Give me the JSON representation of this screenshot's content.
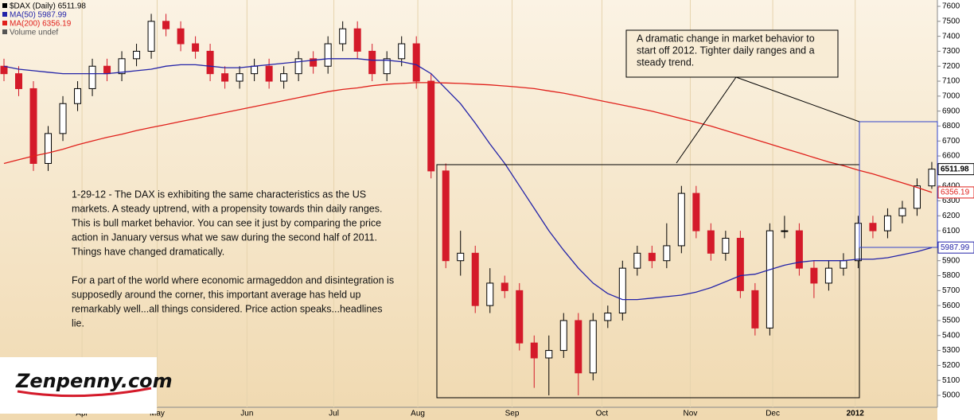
{
  "chart_data": {
    "type": "candlestick",
    "legend": [
      "$DAX (Daily) 6511.98",
      "MA(50) 5987.99",
      "MA(200) 6356.19",
      "Volume undef"
    ],
    "open": [
      7200,
      7150,
      7050,
      6550,
      6750,
      6950,
      7050,
      7200,
      7150,
      7250,
      7300,
      7500,
      7450,
      7350,
      7300,
      7150,
      7100,
      7150,
      7200,
      7100,
      7150,
      7250,
      7200,
      7350,
      7450,
      7300,
      7150,
      7250,
      7350,
      7100,
      6500,
      5900,
      5950,
      5600,
      5750,
      5700,
      5350,
      5250,
      5300,
      5500,
      5150,
      5500,
      5550,
      5850,
      5950,
      5900,
      6000,
      6350,
      6100,
      5950,
      6050,
      5700,
      5450,
      6100,
      6100,
      5850,
      5750,
      5850,
      5900,
      6150,
      6100,
      6200,
      6250,
      6400
    ],
    "high": [
      7250,
      7200,
      7100,
      6800,
      7000,
      7100,
      7250,
      7250,
      7300,
      7350,
      7550,
      7550,
      7500,
      7400,
      7350,
      7200,
      7200,
      7250,
      7250,
      7200,
      7300,
      7300,
      7400,
      7500,
      7500,
      7350,
      7300,
      7400,
      7400,
      7150,
      6550,
      6100,
      6000,
      5850,
      5800,
      5750,
      5400,
      5400,
      5550,
      5550,
      5550,
      5600,
      5900,
      6000,
      6000,
      6150,
      6400,
      6400,
      6150,
      6100,
      6100,
      5750,
      6150,
      6200,
      6150,
      5900,
      5900,
      5950,
      6200,
      6200,
      6250,
      6300,
      6450,
      6560
    ],
    "low": [
      7100,
      7000,
      6500,
      6500,
      6700,
      6900,
      7000,
      7100,
      7100,
      7200,
      7250,
      7400,
      7300,
      7250,
      7100,
      7050,
      7050,
      7100,
      7050,
      7050,
      7100,
      7150,
      7150,
      7300,
      7250,
      7100,
      7100,
      7200,
      7050,
      6450,
      5850,
      5800,
      5550,
      5550,
      5650,
      5300,
      5050,
      5000,
      5250,
      5000,
      5100,
      5450,
      5500,
      5800,
      5850,
      5850,
      5950,
      6050,
      5900,
      5900,
      5650,
      5400,
      5400,
      6050,
      5800,
      5650,
      5700,
      5800,
      5850,
      6050,
      6050,
      6150,
      6200,
      6380
    ],
    "close": [
      7150,
      7050,
      6550,
      6750,
      6950,
      7050,
      7200,
      7150,
      7250,
      7300,
      7500,
      7450,
      7350,
      7300,
      7150,
      7100,
      7150,
      7200,
      7100,
      7150,
      7250,
      7200,
      7350,
      7450,
      7300,
      7150,
      7250,
      7350,
      7100,
      6500,
      5900,
      5950,
      5600,
      5750,
      5700,
      5350,
      5250,
      5300,
      5500,
      5150,
      5500,
      5550,
      5850,
      5950,
      5900,
      6000,
      6350,
      6100,
      5950,
      6050,
      5700,
      5450,
      6100,
      6100,
      5850,
      5750,
      5850,
      5900,
      6150,
      6100,
      6200,
      6250,
      6400,
      6511.98
    ],
    "up_color": "#000000",
    "down_color": "#d41a2a",
    "series": [
      {
        "name": "MA(50)",
        "color": "#2323a8",
        "values": [
          7200,
          7180,
          7170,
          7160,
          7150,
          7150,
          7150,
          7150,
          7160,
          7170,
          7180,
          7200,
          7210,
          7210,
          7200,
          7190,
          7190,
          7200,
          7210,
          7220,
          7230,
          7240,
          7250,
          7250,
          7250,
          7240,
          7240,
          7230,
          7210,
          7150,
          7050,
          6950,
          6820,
          6680,
          6550,
          6400,
          6250,
          6100,
          5970,
          5850,
          5750,
          5680,
          5640,
          5640,
          5650,
          5660,
          5670,
          5690,
          5720,
          5760,
          5800,
          5810,
          5840,
          5870,
          5890,
          5900,
          5900,
          5900,
          5910,
          5910,
          5920,
          5940,
          5960,
          5987.99
        ],
        "value_label": "5987.99"
      },
      {
        "name": "MA(200)",
        "color": "#e0201b",
        "values": [
          6550,
          6575,
          6600,
          6620,
          6645,
          6675,
          6700,
          6725,
          6745,
          6770,
          6790,
          6810,
          6830,
          6850,
          6870,
          6890,
          6910,
          6930,
          6950,
          6970,
          6990,
          7010,
          7030,
          7045,
          7055,
          7070,
          7080,
          7085,
          7090,
          7090,
          7088,
          7085,
          7080,
          7075,
          7068,
          7060,
          7050,
          7035,
          7020,
          7000,
          6980,
          6960,
          6940,
          6920,
          6900,
          6875,
          6850,
          6825,
          6800,
          6770,
          6740,
          6710,
          6680,
          6650,
          6620,
          6590,
          6560,
          6535,
          6505,
          6480,
          6450,
          6420,
          6390,
          6356.19
        ],
        "value_label": "6356.19"
      }
    ],
    "close_label": "6511.98",
    "ylim": [
      5000,
      7600
    ],
    "yticks": [
      5000,
      5100,
      5200,
      5300,
      5400,
      5500,
      5600,
      5700,
      5800,
      5900,
      6000,
      6100,
      6200,
      6300,
      6400,
      6500,
      6600,
      6700,
      6800,
      6900,
      7000,
      7100,
      7200,
      7300,
      7400,
      7500,
      7600
    ],
    "xlim": [
      -0.27,
      63.38
    ],
    "xticks": [
      {
        "value": 5.3,
        "label": "Apr"
      },
      {
        "value": 10.4,
        "label": "May"
      },
      {
        "value": 16.5,
        "label": "Jun"
      },
      {
        "value": 22.4,
        "label": "Jul"
      },
      {
        "value": 28.1,
        "label": "Aug"
      },
      {
        "value": 34.5,
        "label": "Sep"
      },
      {
        "value": 40.6,
        "label": "Oct"
      },
      {
        "value": 46.6,
        "label": "Nov"
      },
      {
        "value": 52.2,
        "label": "Dec"
      },
      {
        "value": 57.8,
        "label": "2012"
      }
    ],
    "annotations": [
      {
        "lines": [
          "A dramatic change in market behavior to",
          "start off 2012. Tighter daily ranges and a",
          "steady trend."
        ]
      },
      {
        "lines": [
          "1-29-12 - The DAX is exhibiting the same characteristics as the US",
          "markets. A steady uptrend, with a propensity towards thin daily ranges.",
          "This is bull market behavior. You can see it just by comparing the price",
          "action in January versus what we saw during the second half of 2011.",
          "Things have changed dramatically."
        ]
      },
      {
        "lines": [
          "For a part of the world where economic armageddon and disintegration is",
          "supposedly around the corner, this important average has held up",
          "remarkably well...all things considered. Price action speaks...headlines",
          "lie."
        ]
      }
    ],
    "logo": "Zenpenny.com"
  }
}
